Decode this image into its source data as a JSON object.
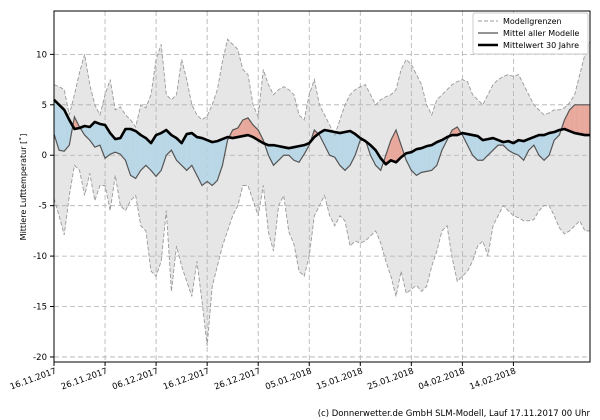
{
  "chart_data": {
    "type": "line",
    "title": "",
    "xlabel": "",
    "ylabel": "Mittlere Lufttemperatur [˚]",
    "ylim": [
      -20.5,
      14.3
    ],
    "yticks": [
      -20,
      -15,
      -10,
      -5,
      0,
      5,
      10
    ],
    "x_start": "16.11.2017",
    "num_days": 106,
    "xticks": [
      {
        "day": 0,
        "label": "16.11.2017"
      },
      {
        "day": 10,
        "label": "26.11.2017"
      },
      {
        "day": 20,
        "label": "06.12.2017"
      },
      {
        "day": 30,
        "label": "16.12.2017"
      },
      {
        "day": 40,
        "label": "26.12.2017"
      },
      {
        "day": 50,
        "label": "05.01.2018"
      },
      {
        "day": 60,
        "label": "15.01.2018"
      },
      {
        "day": 70,
        "label": "25.01.2018"
      },
      {
        "day": 80,
        "label": "04.02.2018"
      },
      {
        "day": 90,
        "label": "14.02.2018"
      }
    ],
    "grid": true,
    "legend_position": "top-right",
    "series": [
      {
        "name": "Modellgrenzen",
        "style": "dashed",
        "color": "#999999",
        "upper": [
          7,
          6.8,
          6.5,
          4,
          6,
          8.2,
          10,
          7,
          5,
          4,
          6,
          7.5,
          4.5,
          4.8,
          4,
          3.5,
          2.8,
          5,
          4.7,
          6,
          9.5,
          11,
          6,
          5.5,
          6,
          9.5,
          7.5,
          5,
          4,
          3.5,
          3.9,
          5,
          6.5,
          9.3,
          11.5,
          11,
          10.5,
          8.5,
          8,
          5,
          3.8,
          8.5,
          7,
          6,
          6.5,
          6.8,
          6.5,
          6,
          4,
          3.5,
          6,
          7.5,
          5,
          4,
          3,
          2,
          3.5,
          5,
          6,
          6.5,
          6.8,
          7,
          6,
          5,
          5.5,
          5.8,
          6,
          6.5,
          8.5,
          9.5,
          9,
          8,
          7,
          5,
          4,
          5.5,
          6,
          6.5,
          7,
          7.3,
          7.5,
          7.3,
          6,
          5.5,
          5,
          6,
          7,
          7.5,
          7.8,
          8,
          7.8,
          8,
          7,
          6,
          5,
          4.5,
          4,
          4.2,
          4.5,
          4.5,
          4.7,
          5.2,
          6,
          8,
          10,
          11.3
        ],
        "lower": [
          -4.3,
          -6,
          -7.9,
          -4,
          -1,
          -1.5,
          -4,
          -1.8,
          -4.5,
          -3,
          -3,
          -5.5,
          -2,
          -5,
          -5.5,
          -4.5,
          -4,
          -7,
          -7.5,
          -11.5,
          -12,
          -10.5,
          -5.5,
          -13.5,
          -9,
          -11,
          -12.5,
          -14,
          -10.5,
          -14.5,
          -18.9,
          -13,
          -11,
          -9,
          -7.5,
          -6,
          -5,
          -3,
          -3,
          -4.5,
          -6,
          -3,
          -7.6,
          -9.5,
          -5,
          -4,
          -7.6,
          -8.8,
          -11.5,
          -12,
          -10,
          -6,
          -5,
          -4,
          -6,
          -7,
          -6,
          -6.5,
          -9,
          -8.5,
          -8.7,
          -8.5,
          -8,
          -7.5,
          -8.7,
          -10.5,
          -12,
          -14,
          -11.5,
          -13.7,
          -13.3,
          -12.9,
          -13.5,
          -13,
          -11,
          -9.5,
          -7.5,
          -7,
          -10.2,
          -12.5,
          -12,
          -11.5,
          -10.5,
          -9,
          -8.5,
          -10,
          -7,
          -6,
          -5,
          -5.5,
          -6,
          -6.2,
          -6.5,
          -6.5,
          -6.4,
          -5.5,
          -5,
          -5,
          -6,
          -7.2,
          -7.8,
          -7.5,
          -7,
          -6.5,
          -7.5,
          -7.5
        ]
      },
      {
        "name": "Mittel aller Modelle",
        "style": "solid",
        "color": "#555555",
        "values": [
          2.1,
          0.5,
          0.4,
          1,
          3.8,
          2.8,
          2,
          1.5,
          0.8,
          1,
          -0.3,
          0.1,
          0.3,
          0.1,
          -0.5,
          -2,
          -2.3,
          -1.5,
          -1,
          -1.5,
          -2.1,
          -1.5,
          0,
          0.5,
          -0.5,
          -1,
          -1.5,
          -1,
          -2,
          -3,
          -2.6,
          -3,
          -2.5,
          -1,
          1.5,
          2.5,
          2.7,
          3.5,
          3.7,
          3,
          2.5,
          1.5,
          0,
          -1,
          -0.5,
          0,
          0,
          -0.5,
          -0.7,
          0.1,
          1,
          2.5,
          2,
          1,
          0,
          -0.2,
          -1,
          -1.5,
          -1,
          0,
          1.5,
          1.5,
          0,
          -1,
          -1.5,
          0,
          1.5,
          2.5,
          1,
          -0.5,
          -1.5,
          -2,
          -1.7,
          -1.6,
          -1.5,
          -1,
          0.5,
          1.5,
          2.5,
          2.8,
          2,
          1,
          0,
          -0.5,
          -0.5,
          0,
          0.5,
          1,
          1,
          0.5,
          0.2,
          0,
          -0.5,
          0.5,
          1,
          0,
          -0.5,
          0,
          1.5,
          2,
          3.5,
          4.5,
          5,
          5,
          5,
          5
        ]
      },
      {
        "name": "Mittelwert 30 Jahre",
        "style": "solid-thick",
        "color": "#000000",
        "values": [
          5.5,
          5,
          4.5,
          3.5,
          2.6,
          2.7,
          2.9,
          2.8,
          3.3,
          3.1,
          3,
          2.2,
          1.6,
          1.7,
          2.6,
          2.6,
          2.4,
          2,
          1.7,
          1.2,
          2,
          2.2,
          2.5,
          2,
          1.7,
          1.2,
          2.1,
          2.2,
          1.8,
          1.7,
          1.5,
          1.3,
          1.4,
          1.6,
          1.8,
          1.7,
          1.8,
          1.9,
          2,
          1.8,
          1.5,
          1.2,
          1,
          1,
          0.9,
          0.8,
          0.7,
          0.8,
          0.9,
          1,
          1.2,
          1.8,
          2.2,
          2.5,
          2.4,
          2.3,
          2.2,
          2.3,
          2.4,
          2.1,
          1.7,
          1.4,
          1,
          0.5,
          -0.3,
          -0.9,
          -0.5,
          -0.7,
          -0.2,
          0.2,
          0.3,
          0.6,
          0.7,
          0.9,
          1,
          1.3,
          1.5,
          1.8,
          2,
          2,
          2.2,
          2.1,
          2,
          1.9,
          1.5,
          1.6,
          1.7,
          1.5,
          1.3,
          1.4,
          1.2,
          1.5,
          1.4,
          1.6,
          1.8,
          2,
          2,
          2.2,
          2.3,
          2.5,
          2.6,
          2.4,
          2.2,
          2.1,
          2,
          2
        ]
      }
    ],
    "fill_above_color": "#e8a89c",
    "fill_below_color": "#b9d7e6",
    "envelope_color": "#e6e6e6",
    "credit": "(c) Donnerwetter.de GmbH SLM-Modell, Lauf 17.11.2017 00 Uhr"
  }
}
